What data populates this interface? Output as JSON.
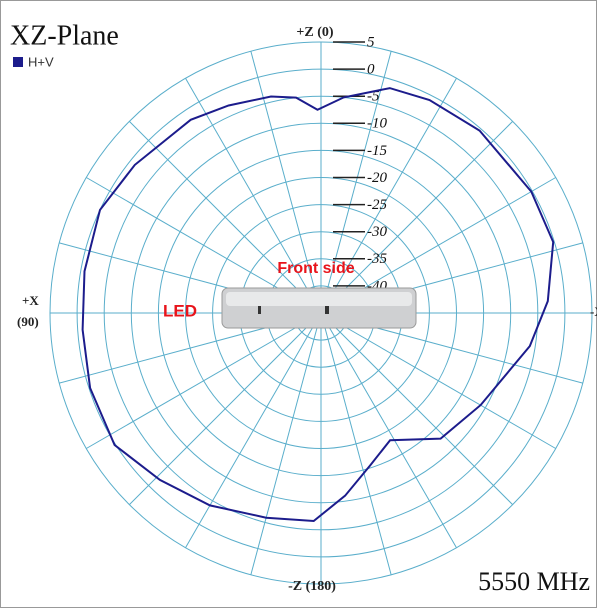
{
  "chart_data": {
    "type": "polar",
    "title": "XZ-Plane",
    "subtitle": "5550 MHz",
    "top_label": "+Z (0)",
    "left_label_lines": [
      "+X",
      "(90)"
    ],
    "bottom_label": "-Z (180)",
    "right_label": "-X",
    "annotations": [
      "Front side",
      "LED"
    ],
    "rlim": [
      -45,
      5
    ],
    "rticks": [
      5,
      0,
      -5,
      -10,
      -15,
      -20,
      -25,
      -30,
      -35,
      -40
    ],
    "thetaticks": [
      0,
      15,
      30,
      45,
      60,
      75,
      90,
      105,
      120,
      135,
      150,
      165,
      180,
      195,
      210,
      225,
      240,
      255,
      270,
      285,
      300,
      315,
      330,
      345
    ],
    "grid_color": "#5aaecb",
    "legend": "top-left",
    "series": [
      {
        "name": "H+V",
        "color": "#1c1c8c",
        "theta": [
          1,
          6.6,
          13,
          24,
          34,
          51.5,
          65,
          80,
          94,
          108,
          122.6,
          136,
          150,
          165,
          178,
          187.5,
          198,
          208.5,
          223.6,
          240,
          261,
          273,
          287,
          300,
          319,
          333,
          343,
          354
        ],
        "values": [
          -7.5,
          -5,
          -4,
          -3.1,
          -2,
          -1.1,
          0,
          -0.7,
          -0.9,
          -0.2,
          0.2,
          -2.2,
          -4,
          -5.9,
          -6.6,
          -11,
          -15.5,
          -18.3,
          -13,
          -11,
          -6,
          -3.1,
          -0.2,
          -0.2,
          -0.4,
          -0.9,
          -1.6,
          -5
        ]
      }
    ]
  }
}
